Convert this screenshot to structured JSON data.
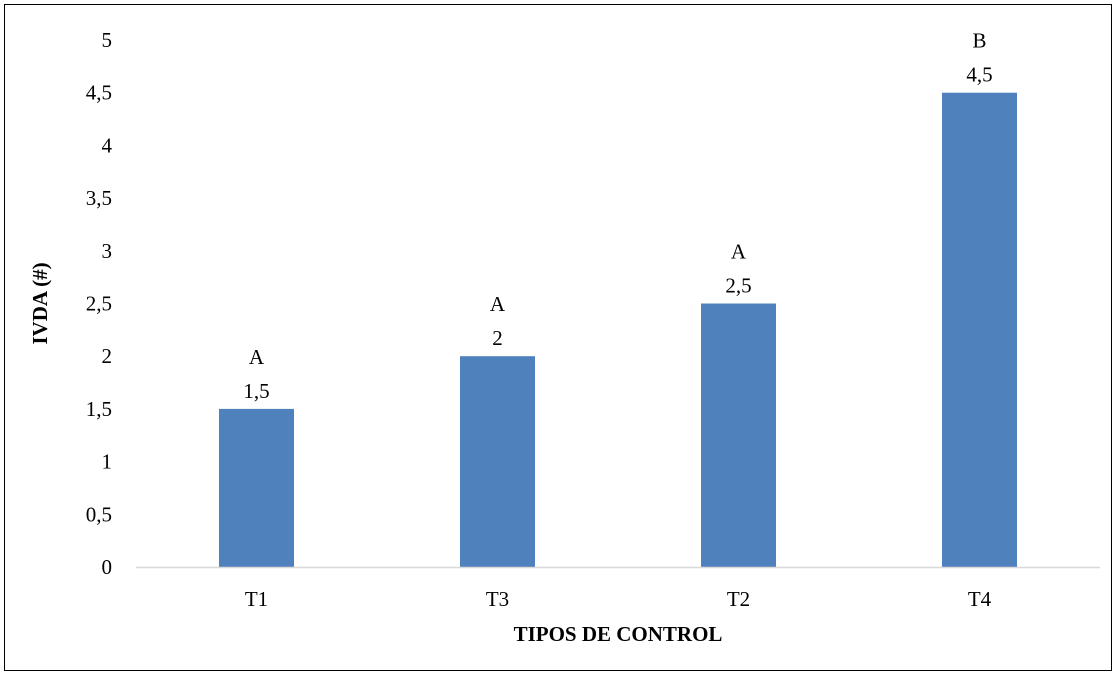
{
  "chart_data": {
    "type": "bar",
    "title": "",
    "xlabel": "TIPOS DE CONTROL",
    "ylabel": "IVDA (#)",
    "categories": [
      "T1",
      "T3",
      "T2",
      "T4"
    ],
    "values": [
      1.5,
      2,
      2.5,
      4.5
    ],
    "value_labels": [
      "1,5",
      "2",
      "2,5",
      "4,5"
    ],
    "group_letters": [
      "A",
      "A",
      "A",
      "B"
    ],
    "ylim": [
      0,
      5
    ],
    "yticks": [
      0,
      0.5,
      1,
      1.5,
      2,
      2.5,
      3,
      3.5,
      4,
      4.5,
      5
    ],
    "ytick_labels": [
      "0",
      "0,5",
      "1",
      "1,5",
      "2",
      "2,5",
      "3",
      "3,5",
      "4",
      "4,5",
      "5"
    ],
    "grid": false,
    "legend": "none",
    "bar_color": "#4f81bd",
    "axis_color": "#d9d9d9"
  }
}
